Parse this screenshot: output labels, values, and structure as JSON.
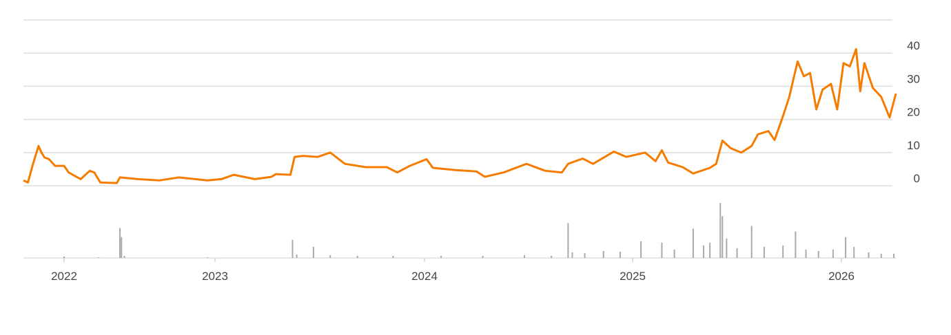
{
  "chart_data": {
    "type": "line",
    "x": [
      2021.73,
      2021.76,
      2021.79,
      2021.81,
      2021.83,
      2021.85,
      2021.87,
      2021.9,
      2021.94,
      2022.0,
      2022.03,
      2022.11,
      2022.17,
      2022.2,
      2022.24,
      2022.35,
      2022.37,
      2022.49,
      2022.63,
      2022.76,
      2022.95,
      2023.03,
      2023.09,
      2023.19,
      2023.27,
      2023.29,
      2023.36,
      2023.38,
      2023.42,
      2023.49,
      2023.55,
      2023.62,
      2023.72,
      2023.82,
      2023.87,
      2023.93,
      2024.01,
      2024.04,
      2024.15,
      2024.25,
      2024.29,
      2024.38,
      2024.49,
      2024.58,
      2024.66,
      2024.69,
      2024.76,
      2024.81,
      2024.91,
      2024.97,
      2025.06,
      2025.11,
      2025.14,
      2025.17,
      2025.24,
      2025.29,
      2025.37,
      2025.4,
      2025.43,
      2025.47,
      2025.52,
      2025.57,
      2025.6,
      2025.65,
      2025.68,
      2025.72,
      2025.75,
      2025.79,
      2025.82,
      2025.85,
      2025.88,
      2025.91,
      2025.95,
      2025.98,
      2026.01,
      2026.04,
      2026.07,
      2026.09,
      2026.11,
      2026.15,
      2026.19,
      2026.23,
      2026.26
    ],
    "series": [
      {
        "color": "#f57c00",
        "values": [
          1.6,
          1,
          6,
          9,
          12,
          10,
          8.5,
          8,
          6,
          6,
          4,
          2,
          4.5,
          4,
          1,
          0.8,
          2.5,
          2,
          1.6,
          2.5,
          1.6,
          2,
          3.3,
          2,
          2.7,
          3.5,
          3.3,
          8.7,
          9,
          8.7,
          10,
          6.6,
          5.6,
          5.6,
          4,
          6,
          8,
          5.4,
          4.7,
          4.3,
          2.7,
          4,
          6.6,
          4.5,
          4,
          6.6,
          8.2,
          6.6,
          10.3,
          8.7,
          10,
          7.4,
          10.7,
          7,
          5.6,
          3.7,
          5.4,
          6.6,
          13.6,
          11.3,
          10,
          12,
          15.5,
          16.5,
          13.8,
          21,
          26.8,
          37.5,
          33,
          34,
          23,
          29,
          30.7,
          23,
          37,
          36,
          41.2,
          28.5,
          37,
          29.5,
          26.8,
          20.6,
          27.8
        ]
      }
    ],
    "volume": {
      "color": "#aaaaaa",
      "x": [
        2022.0,
        2022.23,
        2022.37,
        2022.38,
        2022.4,
        2022.95,
        2023.37,
        2023.39,
        2023.47,
        2023.55,
        2023.68,
        2023.85,
        2024.08,
        2024.28,
        2024.48,
        2024.61,
        2024.69,
        2024.71,
        2024.77,
        2024.86,
        2024.94,
        2025.04,
        2025.14,
        2025.2,
        2025.29,
        2025.34,
        2025.37,
        2025.42,
        2025.43,
        2025.45,
        2025.5,
        2025.57,
        2025.63,
        2025.72,
        2025.78,
        2025.83,
        2025.89,
        2025.96,
        2026.02,
        2026.06,
        2026.13,
        2026.19,
        2026.25
      ],
      "values": [
        2,
        1,
        43,
        30,
        3,
        1,
        26,
        5,
        16,
        4,
        3,
        3,
        3,
        3,
        4,
        3,
        50,
        8,
        7,
        10,
        9,
        24,
        22,
        12,
        42,
        18,
        22,
        79,
        60,
        28,
        14,
        46,
        16,
        18,
        38,
        12,
        10,
        12,
        30,
        16,
        8,
        6,
        6
      ]
    },
    "xlim": [
      2021.73,
      2026.26
    ],
    "xticks": [
      2022,
      2023,
      2024,
      2025,
      2026
    ],
    "ylim": [
      0,
      50
    ],
    "yticks": [
      0,
      10,
      20,
      30,
      40
    ],
    "grid": true
  }
}
